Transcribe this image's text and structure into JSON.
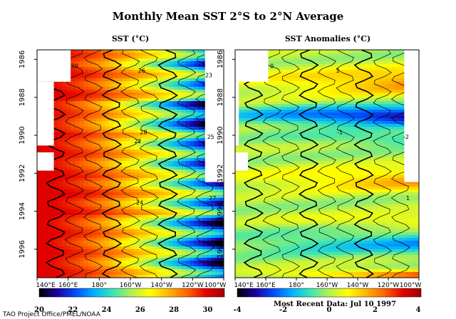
{
  "title": "Monthly Mean SST  2°S to 2°N Average",
  "footer_left": "TAO Project Office/PMEL/NOAA",
  "footer_right": "Most Recent Data: Jul 10 1997",
  "chart_data": [
    {
      "type": "heatmap",
      "title": "SST (°C)",
      "x_tick_labels": [
        "140°E",
        "160°E",
        "180°",
        "160°W",
        "140°W",
        "120°W",
        "100°W"
      ],
      "y_tick_labels": [
        "1986",
        "1988",
        "1990",
        "1992",
        "1994",
        "1996"
      ],
      "xlim": [
        140,
        260
      ],
      "ylim": [
        1985.5,
        1997.5
      ],
      "colorbar": {
        "ticks": [
          "20",
          "22",
          "24",
          "26",
          "28",
          "30"
        ],
        "range": [
          20,
          31
        ],
        "colors": [
          "#000000",
          "#1e00a0",
          "#0050ff",
          "#00b4ff",
          "#3ce6b4",
          "#b4f050",
          "#ffff00",
          "#ffb400",
          "#ff6400",
          "#e60000",
          "#a00000"
        ]
      },
      "contour_labels": [
        "29",
        "28",
        "27",
        "26",
        "25",
        "24",
        "23",
        "22"
      ]
    },
    {
      "type": "heatmap",
      "title": "SST Anomalies (°C)",
      "x_tick_labels": [
        "140°E",
        "160°E",
        "180°",
        "160°W",
        "140°W",
        "120°W",
        "100°W"
      ],
      "y_tick_labels": [
        "1986",
        "1988",
        "1990",
        "1992",
        "1994",
        "1996"
      ],
      "xlim": [
        140,
        260
      ],
      "ylim": [
        1985.5,
        1997.5
      ],
      "colorbar": {
        "ticks": [
          "-4",
          "-2",
          "0",
          "2",
          "4"
        ],
        "range": [
          -4,
          4
        ],
        "colors": [
          "#000000",
          "#1e00a0",
          "#0050ff",
          "#00b4ff",
          "#3ce6b4",
          "#b4f050",
          "#ffff00",
          "#ffb400",
          "#ff6400",
          "#e60000",
          "#a00000"
        ]
      },
      "contour_labels": [
        "0",
        "-1",
        "1",
        "2",
        "-2"
      ]
    }
  ]
}
